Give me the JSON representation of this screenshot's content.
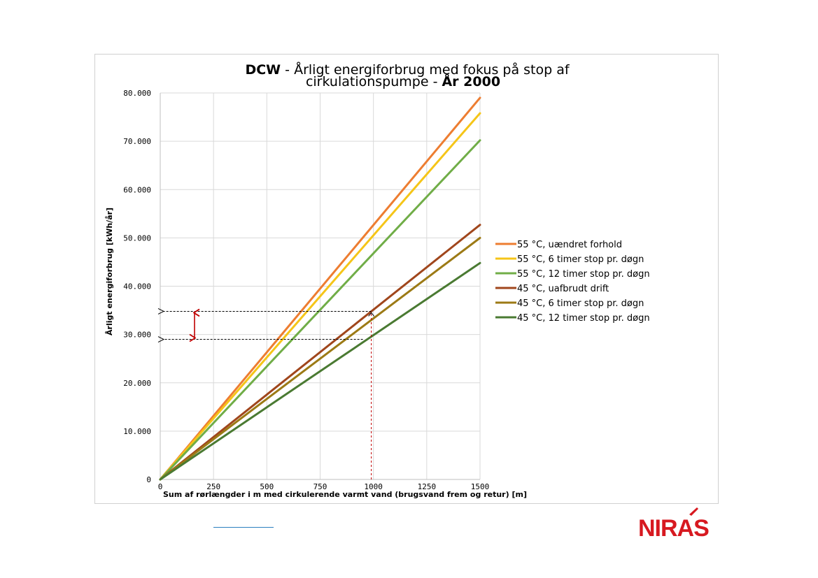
{
  "chart_data": {
    "type": "line",
    "title_parts": [
      {
        "text": "DCW",
        "bold": true
      },
      {
        "text": " - Årligt energiforbrug med fokus på stop af",
        "bold": false
      }
    ],
    "title_line2_parts": [
      {
        "text": "cirkulationspumpe - ",
        "bold": false
      },
      {
        "text": "År 2000",
        "bold": true
      }
    ],
    "xlabel": "Sum af rørlængder i m med cirkulerende varmt vand (brugsvand frem og retur) [m]",
    "ylabel": "Årligt energiforbrug [kWh/år]",
    "xlim": [
      0,
      1500
    ],
    "ylim": [
      0,
      80000
    ],
    "x_ticks": [
      0,
      250,
      500,
      750,
      1000,
      1250,
      1500
    ],
    "x_tick_labels": [
      "0",
      "250",
      "500",
      "750",
      "1000",
      "1250",
      "1500"
    ],
    "y_ticks": [
      0,
      10000,
      20000,
      30000,
      40000,
      50000,
      60000,
      70000,
      80000
    ],
    "y_tick_labels": [
      "0",
      "10.000",
      "20.000",
      "30.000",
      "40.000",
      "50.000",
      "60.000",
      "70.000",
      "80.000"
    ],
    "grid": true,
    "legend_position": "right",
    "series": [
      {
        "name": "55 °C, uændret forhold",
        "color": "#ed7d31",
        "x": [
          0,
          1500
        ],
        "y": [
          0,
          79000
        ]
      },
      {
        "name": "55 °C, 6 timer stop pr. døgn",
        "color": "#f5c518",
        "x": [
          0,
          1500
        ],
        "y": [
          0,
          75800
        ]
      },
      {
        "name": "55 °C, 12 timer stop pr. døgn",
        "color": "#70ad47",
        "x": [
          0,
          1500
        ],
        "y": [
          0,
          70200
        ]
      },
      {
        "name": "45 °C, uafbrudt drift",
        "color": "#a0461c",
        "x": [
          0,
          1500
        ],
        "y": [
          0,
          52700
        ]
      },
      {
        "name": "45 °C, 6 timer stop pr. døgn",
        "color": "#9c7a15",
        "x": [
          0,
          1500
        ],
        "y": [
          0,
          50000
        ]
      },
      {
        "name": "45 °C, 12 timer stop pr. døgn",
        "color": "#4a7a32",
        "x": [
          0,
          1500
        ],
        "y": [
          0,
          44800
        ]
      }
    ],
    "annotations": {
      "vertical_marker_x": 990,
      "horizontal_markers_y": [
        34800,
        29000
      ],
      "difference_arrow_color": "#c00000"
    }
  },
  "logo": {
    "text": "NIRAS",
    "color": "#d71920"
  }
}
